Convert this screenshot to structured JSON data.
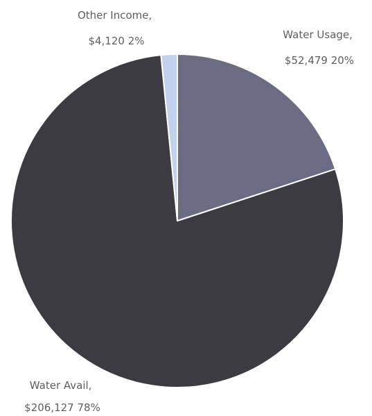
{
  "chart_data": {
    "type": "pie",
    "slices": [
      {
        "label_line1": "Water Usage,",
        "label_line2": "$52,479 20%",
        "value": 52479,
        "color": "#6b6b83"
      },
      {
        "label_line1": "Water Avail,",
        "label_line2": "$206,127 78%",
        "value": 206127,
        "color": "#3b3b41"
      },
      {
        "label_line1": "Other Income,",
        "label_line2": "$4,120 2%",
        "value": 4120,
        "color": "#c3d2ec"
      }
    ],
    "start_angle_degrees": 0,
    "direction": "clockwise",
    "legend": "none"
  }
}
